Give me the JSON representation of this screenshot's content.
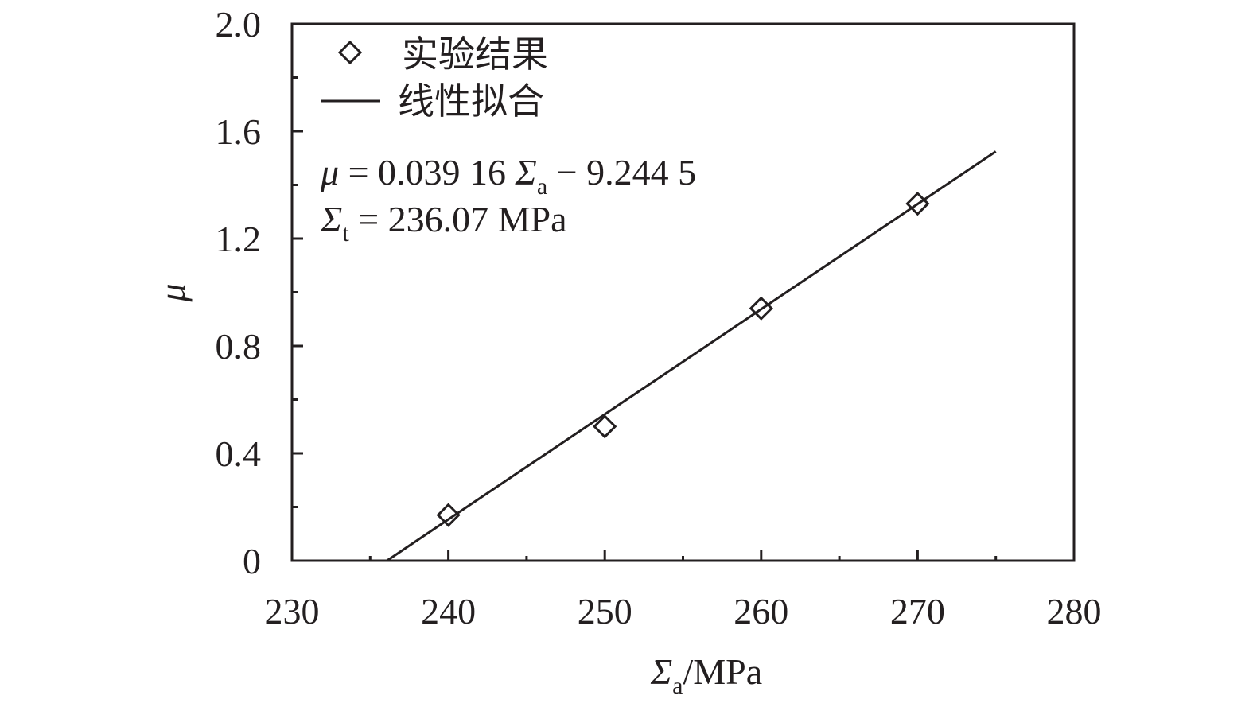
{
  "chart_data": {
    "type": "scatter",
    "xlabel": {
      "symbol": "Σ",
      "sub": "a",
      "unit": "/MPa"
    },
    "ylabel": "μ",
    "xlim": [
      230,
      280
    ],
    "ylim": [
      0,
      2.0
    ],
    "xticks": [
      230,
      240,
      250,
      260,
      270,
      280
    ],
    "yticks": [
      0,
      0.4,
      0.8,
      1.2,
      1.6,
      2.0
    ],
    "ytick_labels": [
      "0",
      "0.4",
      "0.8",
      "1.2",
      "1.6",
      "2.0"
    ],
    "grid": false,
    "legend_placement": "top-left",
    "series": [
      {
        "name": "实验结果",
        "kind": "markers",
        "marker": "diamond-open",
        "x": [
          240,
          250,
          260,
          270
        ],
        "y": [
          0.17,
          0.5,
          0.94,
          1.33
        ]
      },
      {
        "name": "线性拟合",
        "kind": "line",
        "slope": 0.03916,
        "intercept": -9.2445,
        "x_range": [
          236.07,
          275
        ]
      }
    ],
    "annotations": {
      "equation": {
        "lhs": "μ",
        "mid": " = 0.039 16 ",
        "sym": "Σ",
        "sub": "a",
        "rhs": " − 9.244 5"
      },
      "threshold": {
        "sym": "Σ",
        "sub": "t",
        "rhs": " = 236.07 MPa"
      }
    },
    "color": "#231f20"
  }
}
